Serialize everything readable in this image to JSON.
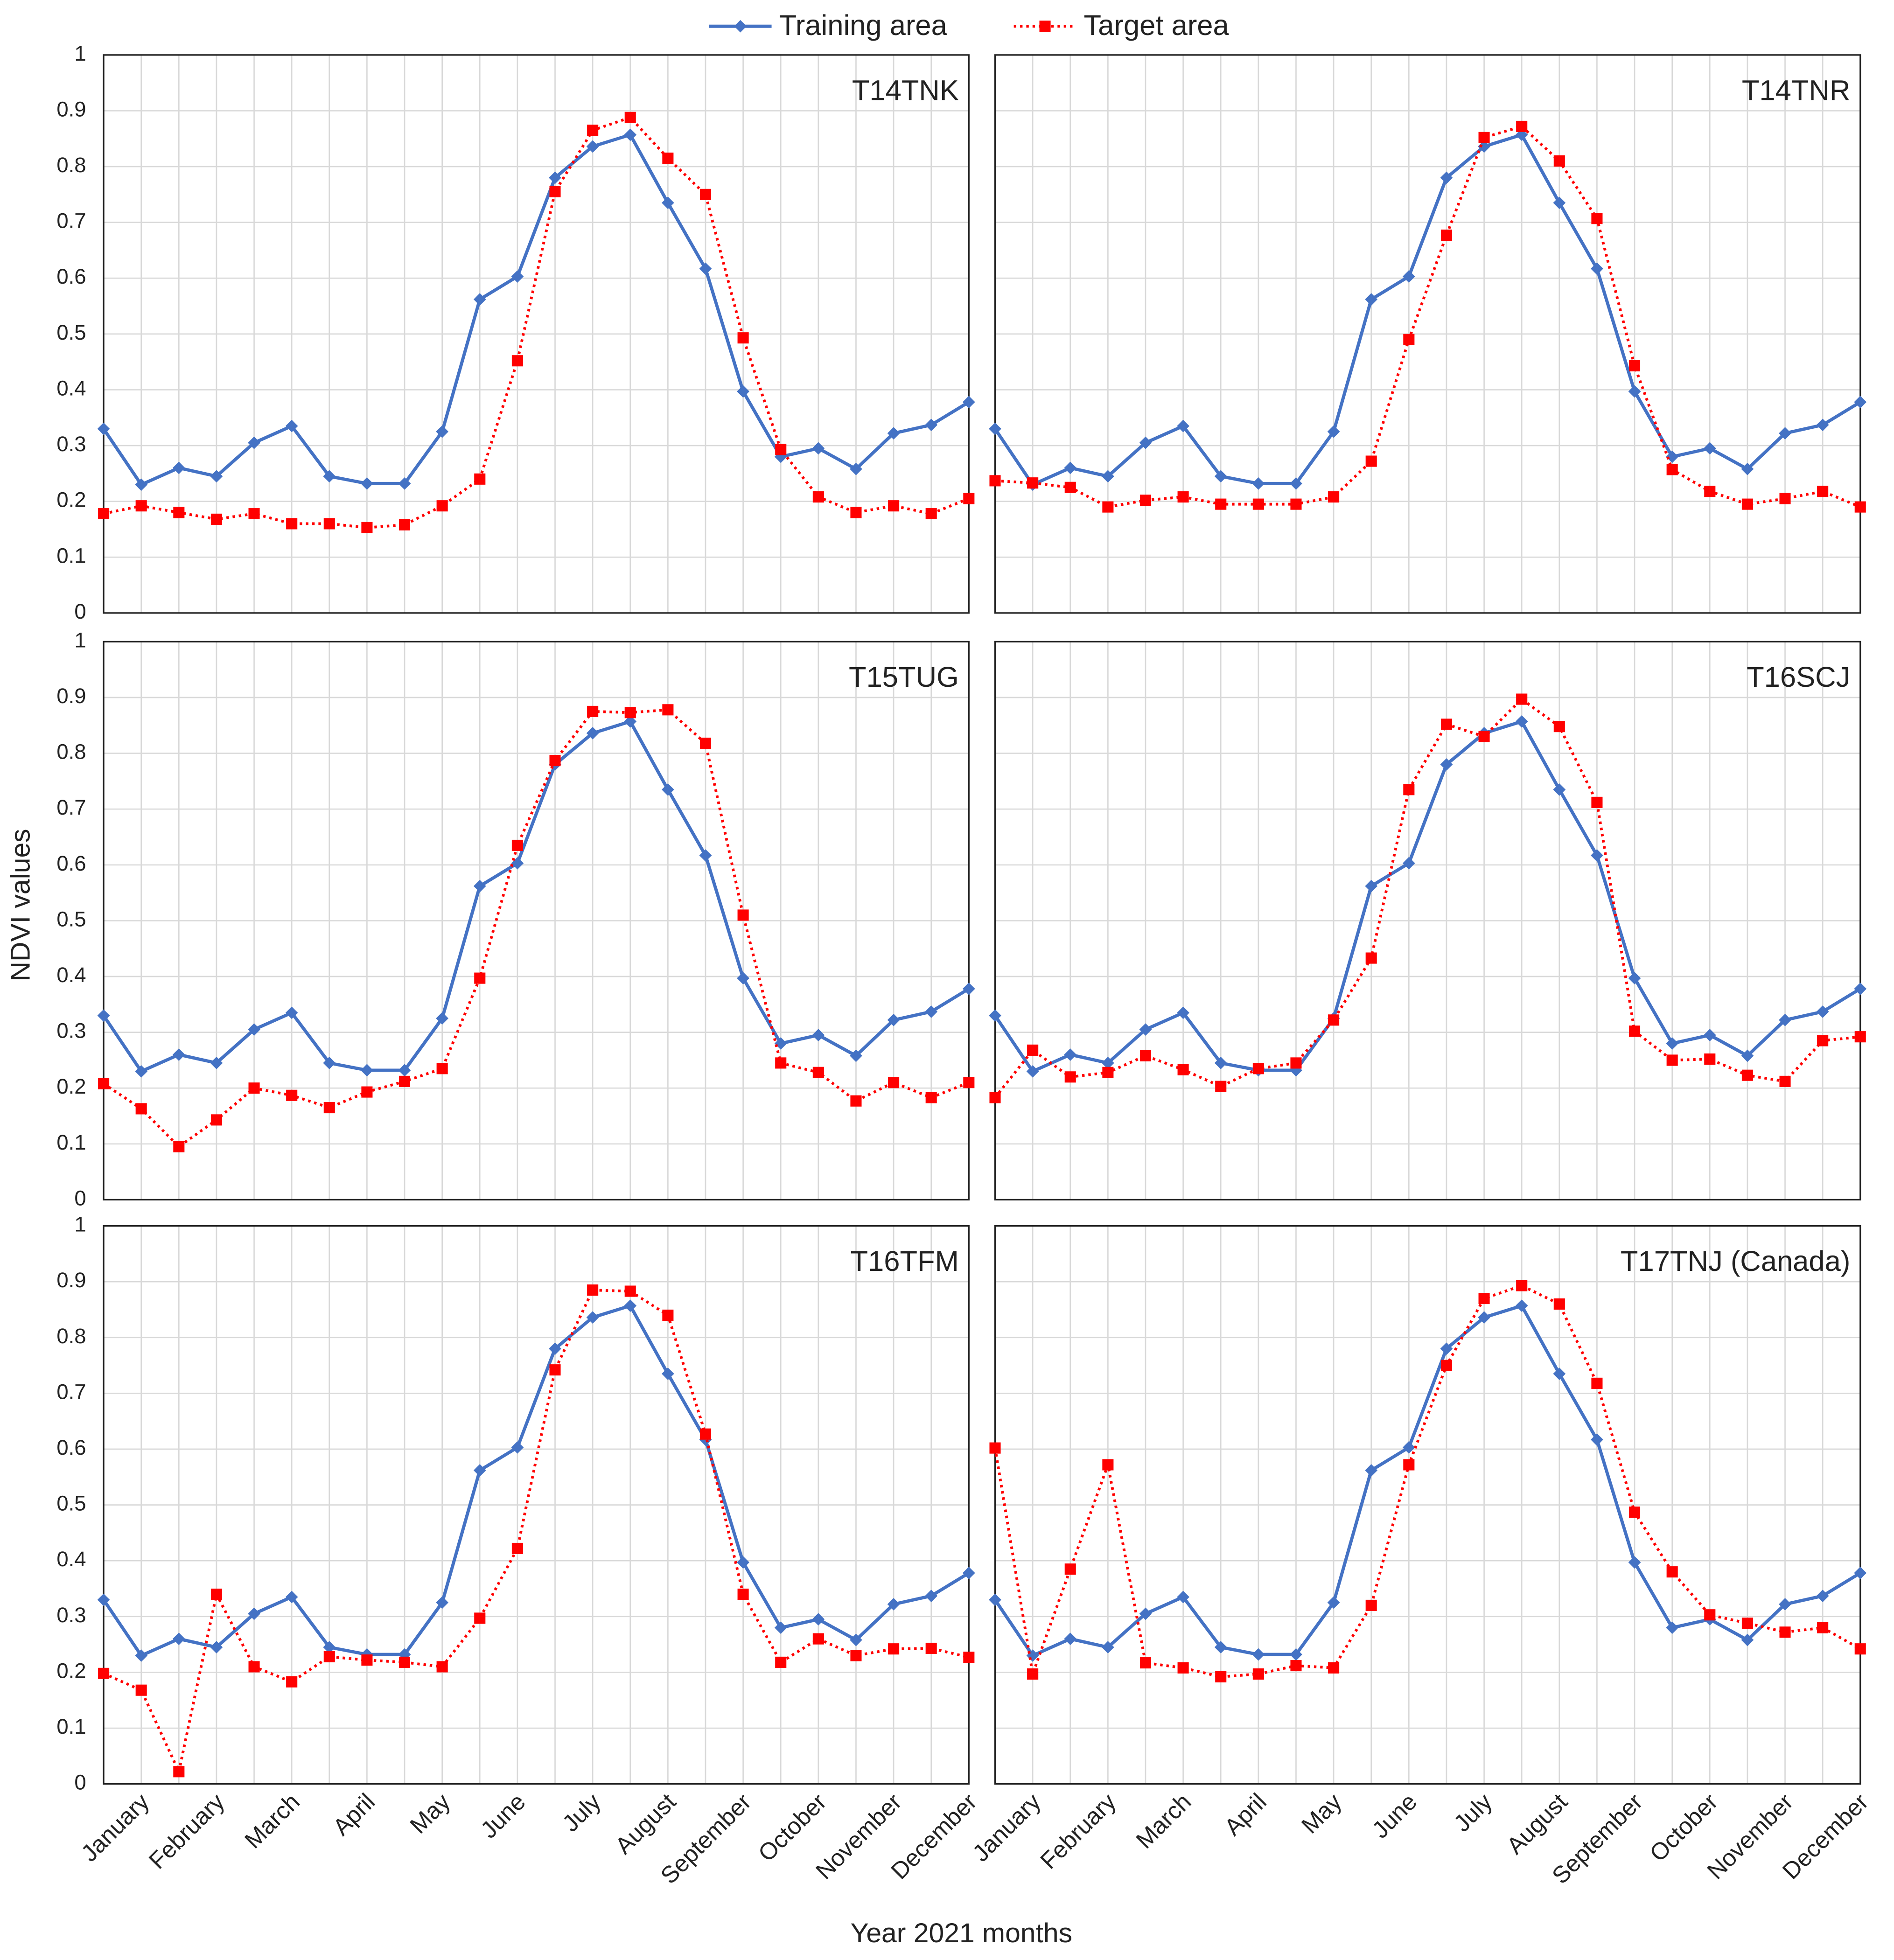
{
  "y_label": "NDVI values",
  "x_label": "Year 2021 months",
  "chart_data": [
    {
      "type": "line",
      "title": "T14TNK",
      "ylim": [
        0,
        1
      ],
      "yticks": [
        0,
        0.1,
        0.2,
        0.3,
        0.4,
        0.5,
        0.6,
        0.7,
        0.8,
        0.9,
        1
      ],
      "series": [
        {
          "name": "Training area",
          "color": "#4472c4",
          "line_style": "solid",
          "marker": "diamond",
          "values": [
            0.33,
            0.23,
            0.26,
            0.245,
            0.305,
            0.335,
            0.245,
            0.232,
            0.232,
            0.325,
            0.562,
            0.603,
            0.78,
            0.836,
            0.857,
            0.735,
            0.617,
            0.397,
            0.28,
            0.295,
            0.258,
            0.322,
            0.337,
            0.378
          ]
        },
        {
          "name": "Target area",
          "color": "#ff0000",
          "line_style": "dotted",
          "marker": "square",
          "values": [
            0.178,
            0.192,
            0.18,
            0.168,
            0.178,
            0.16,
            0.16,
            0.153,
            0.158,
            0.192,
            0.24,
            0.452,
            0.755,
            0.865,
            0.888,
            0.815,
            0.75,
            0.493,
            0.293,
            0.208,
            0.18,
            0.192,
            0.178,
            0.205
          ]
        }
      ]
    },
    {
      "type": "line",
      "title": "T14TNR",
      "ylim": [
        0,
        1
      ],
      "yticks": [
        0,
        0.1,
        0.2,
        0.3,
        0.4,
        0.5,
        0.6,
        0.7,
        0.8,
        0.9,
        1
      ],
      "series": [
        {
          "name": "Training area",
          "color": "#4472c4",
          "line_style": "solid",
          "marker": "diamond",
          "values": [
            0.33,
            0.23,
            0.26,
            0.245,
            0.305,
            0.335,
            0.245,
            0.232,
            0.232,
            0.325,
            0.562,
            0.603,
            0.78,
            0.836,
            0.857,
            0.735,
            0.617,
            0.397,
            0.28,
            0.295,
            0.258,
            0.322,
            0.337,
            0.378
          ]
        },
        {
          "name": "Target area",
          "color": "#ff0000",
          "line_style": "dotted",
          "marker": "square",
          "values": [
            0.237,
            0.233,
            0.225,
            0.19,
            0.202,
            0.208,
            0.195,
            0.195,
            0.195,
            0.208,
            0.272,
            0.49,
            0.677,
            0.852,
            0.872,
            0.81,
            0.707,
            0.443,
            0.257,
            0.218,
            0.195,
            0.205,
            0.218,
            0.19
          ]
        }
      ]
    },
    {
      "type": "line",
      "title": "T15TUG",
      "ylim": [
        0,
        1
      ],
      "yticks": [
        0,
        0.1,
        0.2,
        0.3,
        0.4,
        0.5,
        0.6,
        0.7,
        0.8,
        0.9,
        1
      ],
      "series": [
        {
          "name": "Training area",
          "color": "#4472c4",
          "line_style": "solid",
          "marker": "diamond",
          "values": [
            0.33,
            0.23,
            0.26,
            0.245,
            0.305,
            0.335,
            0.245,
            0.232,
            0.232,
            0.325,
            0.562,
            0.603,
            0.78,
            0.836,
            0.857,
            0.735,
            0.617,
            0.397,
            0.28,
            0.295,
            0.258,
            0.322,
            0.337,
            0.378
          ]
        },
        {
          "name": "Target area",
          "color": "#ff0000",
          "line_style": "dotted",
          "marker": "square",
          "values": [
            0.208,
            0.163,
            0.095,
            0.143,
            0.2,
            0.187,
            0.165,
            0.193,
            0.212,
            0.235,
            0.397,
            0.635,
            0.787,
            0.875,
            0.873,
            0.878,
            0.818,
            0.51,
            0.245,
            0.228,
            0.177,
            0.21,
            0.183,
            0.21
          ]
        }
      ]
    },
    {
      "type": "line",
      "title": "T16SCJ",
      "ylim": [
        0,
        1
      ],
      "yticks": [
        0,
        0.1,
        0.2,
        0.3,
        0.4,
        0.5,
        0.6,
        0.7,
        0.8,
        0.9,
        1
      ],
      "series": [
        {
          "name": "Training area",
          "color": "#4472c4",
          "line_style": "solid",
          "marker": "diamond",
          "values": [
            0.33,
            0.23,
            0.26,
            0.245,
            0.305,
            0.335,
            0.245,
            0.232,
            0.232,
            0.325,
            0.562,
            0.603,
            0.78,
            0.836,
            0.857,
            0.735,
            0.617,
            0.397,
            0.28,
            0.295,
            0.258,
            0.322,
            0.337,
            0.378
          ]
        },
        {
          "name": "Target area",
          "color": "#ff0000",
          "line_style": "dotted",
          "marker": "square",
          "values": [
            0.183,
            0.268,
            0.22,
            0.228,
            0.258,
            0.233,
            0.203,
            0.235,
            0.245,
            0.322,
            0.433,
            0.735,
            0.852,
            0.83,
            0.897,
            0.848,
            0.712,
            0.302,
            0.25,
            0.252,
            0.223,
            0.212,
            0.285,
            0.292
          ]
        }
      ]
    },
    {
      "type": "line",
      "title": "T16TFM",
      "ylim": [
        0,
        1
      ],
      "yticks": [
        0,
        0.1,
        0.2,
        0.3,
        0.4,
        0.5,
        0.6,
        0.7,
        0.8,
        0.9,
        1
      ],
      "categories": [
        null,
        "January",
        null,
        "February",
        null,
        "March",
        null,
        "April",
        null,
        "May",
        null,
        "June",
        null,
        "July",
        null,
        "August",
        null,
        "September",
        null,
        "October",
        null,
        "November",
        null,
        "December"
      ],
      "series": [
        {
          "name": "Training area",
          "color": "#4472c4",
          "line_style": "solid",
          "marker": "diamond",
          "values": [
            0.33,
            0.23,
            0.26,
            0.245,
            0.305,
            0.335,
            0.245,
            0.232,
            0.232,
            0.325,
            0.562,
            0.603,
            0.78,
            0.836,
            0.857,
            0.735,
            0.617,
            0.397,
            0.28,
            0.295,
            0.258,
            0.322,
            0.337,
            0.378
          ]
        },
        {
          "name": "Target area",
          "color": "#ff0000",
          "line_style": "dotted",
          "marker": "square",
          "values": [
            0.198,
            0.168,
            0.022,
            0.34,
            0.21,
            0.183,
            0.228,
            0.222,
            0.218,
            0.21,
            0.297,
            0.422,
            0.742,
            0.885,
            0.883,
            0.84,
            0.627,
            0.34,
            0.218,
            0.26,
            0.23,
            0.242,
            0.243,
            0.227
          ]
        }
      ]
    },
    {
      "type": "line",
      "title": "T17TNJ (Canada)",
      "ylim": [
        0,
        1
      ],
      "yticks": [
        0,
        0.1,
        0.2,
        0.3,
        0.4,
        0.5,
        0.6,
        0.7,
        0.8,
        0.9,
        1
      ],
      "categories": [
        null,
        "January",
        null,
        "February",
        null,
        "March",
        null,
        "April",
        null,
        "May",
        null,
        "June",
        null,
        "July",
        null,
        "August",
        null,
        "September",
        null,
        "October",
        null,
        "November",
        null,
        "December"
      ],
      "series": [
        {
          "name": "Training area",
          "color": "#4472c4",
          "line_style": "solid",
          "marker": "diamond",
          "values": [
            0.33,
            0.23,
            0.26,
            0.245,
            0.305,
            0.335,
            0.245,
            0.232,
            0.232,
            0.325,
            0.562,
            0.603,
            0.78,
            0.836,
            0.857,
            0.735,
            0.617,
            0.397,
            0.28,
            0.295,
            0.258,
            0.322,
            0.337,
            0.378
          ]
        },
        {
          "name": "Target area",
          "color": "#ff0000",
          "line_style": "dotted",
          "marker": "square",
          "values": [
            0.602,
            0.197,
            0.385,
            0.572,
            0.217,
            0.208,
            0.192,
            0.197,
            0.212,
            0.208,
            0.32,
            0.572,
            0.75,
            0.87,
            0.893,
            0.86,
            0.718,
            0.487,
            0.38,
            0.303,
            0.288,
            0.272,
            0.28,
            0.242
          ]
        }
      ]
    }
  ]
}
